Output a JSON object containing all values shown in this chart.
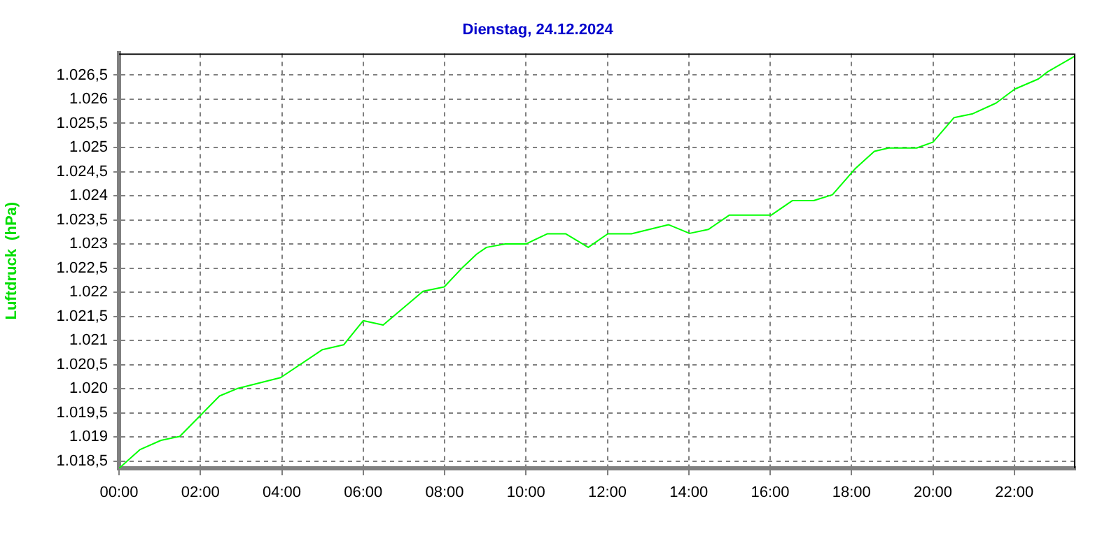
{
  "chart_data": {
    "type": "line",
    "title": "Dienstag, 24.12.2024",
    "ylabel": "Luftdruck  (hPa)",
    "x": [
      0,
      0.52,
      1.03,
      1.49,
      2.47,
      2.93,
      3.97,
      5.0,
      5.52,
      6.0,
      6.49,
      7.47,
      7.99,
      8.45,
      8.79,
      9.03,
      9.49,
      10.0,
      10.52,
      10.98,
      11.53,
      12.01,
      12.59,
      13.5,
      14.02,
      14.48,
      15.0,
      16.03,
      16.55,
      17.07,
      17.53,
      18.1,
      18.56,
      18.91,
      19.6,
      20.0,
      20.52,
      20.98,
      21.55,
      22.01,
      22.59,
      22.82,
      23.5
    ],
    "series": [
      {
        "color": "#00ff00",
        "values": [
          1018.35,
          1018.74,
          1018.93,
          1019.01,
          1019.85,
          1020.01,
          1020.23,
          1020.81,
          1020.91,
          1021.41,
          1021.32,
          1022.02,
          1022.11,
          1022.52,
          1022.79,
          1022.93,
          1023.0,
          1023.0,
          1023.21,
          1023.21,
          1022.93,
          1023.21,
          1023.21,
          1023.4,
          1023.22,
          1023.3,
          1023.6,
          1023.6,
          1023.9,
          1023.9,
          1024.02,
          1024.57,
          1024.92,
          1024.99,
          1024.99,
          1025.11,
          1025.62,
          1025.7,
          1025.92,
          1026.21,
          1026.42,
          1026.57,
          1026.9
        ]
      }
    ],
    "xlim": [
      0,
      23.5
    ],
    "xticks": [
      {
        "value": 0,
        "label": "00:00"
      },
      {
        "value": 2,
        "label": "02:00"
      },
      {
        "value": 4,
        "label": "04:00"
      },
      {
        "value": 6,
        "label": "06:00"
      },
      {
        "value": 8,
        "label": "08:00"
      },
      {
        "value": 10,
        "label": "10:00"
      },
      {
        "value": 12,
        "label": "12:00"
      },
      {
        "value": 14,
        "label": "14:00"
      },
      {
        "value": 16,
        "label": "16:00"
      },
      {
        "value": 18,
        "label": "18:00"
      },
      {
        "value": 20,
        "label": "20:00"
      },
      {
        "value": 22,
        "label": "22:00"
      }
    ],
    "ylim": [
      1018.35,
      1026.95
    ],
    "yticks": [
      {
        "value": 1018.5,
        "label": "1.018,5"
      },
      {
        "value": 1019,
        "label": "1.019"
      },
      {
        "value": 1019.5,
        "label": "1.019,5"
      },
      {
        "value": 1020,
        "label": "1.020"
      },
      {
        "value": 1020.5,
        "label": "1.020,5"
      },
      {
        "value": 1021,
        "label": "1.021"
      },
      {
        "value": 1021.5,
        "label": "1.021,5"
      },
      {
        "value": 1022,
        "label": "1.022"
      },
      {
        "value": 1022.5,
        "label": "1.022,5"
      },
      {
        "value": 1023,
        "label": "1.023"
      },
      {
        "value": 1023.5,
        "label": "1.023,5"
      },
      {
        "value": 1024,
        "label": "1.024"
      },
      {
        "value": 1024.5,
        "label": "1.024,5"
      },
      {
        "value": 1025,
        "label": "1.025"
      },
      {
        "value": 1025.5,
        "label": "1.025,5"
      },
      {
        "value": 1026,
        "label": "1.026"
      },
      {
        "value": 1026.5,
        "label": "1.026,5"
      }
    ],
    "grid": true,
    "line_style": "solid",
    "marker": "none",
    "legend": false
  }
}
